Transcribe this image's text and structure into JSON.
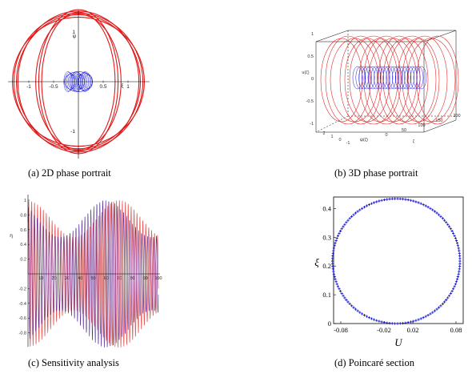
{
  "captions": {
    "a": "(a)  2D phase portrait",
    "b": "(b)  3D phase portrait",
    "c": "(c)  Sensitivity analysis",
    "d": "(d)  Poincaré section"
  },
  "colors": {
    "outer_orbit": "#e01a1a",
    "inner_orbit": "#1a1ae0",
    "sensitivity_a": "#e85a5a",
    "sensitivity_b": "#4a1a8a",
    "poincare": "#1a1ad0"
  },
  "chart_data": [
    {
      "id": "a",
      "type": "line",
      "xlabel": "ξ",
      "ylabel": "ψ",
      "x_ticks": [
        "-1",
        "-0.5",
        "0.5",
        "1"
      ],
      "y_ticks": [
        "1",
        "-1"
      ],
      "xlim": [
        -1.45,
        1.45
      ],
      "ylim": [
        -1.45,
        1.45
      ],
      "series": [
        {
          "color": "#e01a1a",
          "values": [
            {
              "rx": 1.3,
              "ry": 1.38
            },
            {
              "rx": 1.22,
              "ry": 1.42
            },
            {
              "rx": 1.25,
              "ry": 1.35
            },
            {
              "rx": 1.33,
              "ry": 1.3
            }
          ]
        },
        {
          "color": "#e01a1a",
          "values": [
            {
              "rx": 0.8,
              "ry": 1.45
            },
            {
              "rx": 0.74,
              "ry": 1.4
            },
            {
              "rx": 0.86,
              "ry": 1.36
            }
          ]
        },
        {
          "color": "#1a1ae0",
          "values": [
            {
              "rx": 0.28,
              "ry": 0.2
            }
          ]
        }
      ]
    },
    {
      "id": "b",
      "type": "line",
      "xlabel": "ζ",
      "ylabel": "u(ζ)",
      "zlabel": "ψ(ζ)",
      "z_ticks": [
        "1",
        "0.5",
        "0",
        "-0.5",
        "-1"
      ],
      "x_ticks": [
        "2",
        "1",
        "0",
        "-1"
      ],
      "y_ticks": [
        "0",
        "50",
        "100",
        "150",
        "200"
      ]
    },
    {
      "id": "c",
      "type": "line",
      "ylabel": "η",
      "x_ticks": [
        "0",
        "10",
        "20",
        "30",
        "40",
        "50",
        "60",
        "70",
        "80",
        "90",
        "100"
      ],
      "y_ticks": [
        "1",
        "0.8",
        "0.6",
        "0.4",
        "0.2",
        "-0.2",
        "-0.4",
        "-0.6",
        "-0.8"
      ],
      "xlim": [
        0,
        100
      ],
      "ylim": [
        -1,
        1
      ]
    },
    {
      "id": "d",
      "type": "scatter",
      "xlabel": "U",
      "ylabel": "ξ",
      "x_ticks": [
        "-0.08",
        "-0.02",
        "0.02",
        "0.08"
      ],
      "y_ticks": [
        "0.4",
        "0.3",
        "0.2",
        "0.1",
        "0"
      ],
      "xlim": [
        -0.09,
        0.09
      ],
      "ylim": [
        0,
        0.44
      ],
      "center": [
        -0.003,
        0.217
      ],
      "radius_x": 0.0885,
      "radius_y": 0.217
    }
  ]
}
